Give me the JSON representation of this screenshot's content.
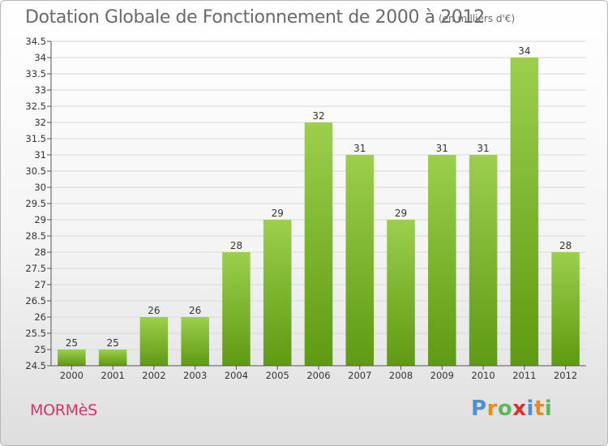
{
  "title": "Dotation Globale de Fonctionnement de 2000 à 2012",
  "subtitle": "(en milliers d'€)",
  "commune": "MORMèS",
  "logo": {
    "letters": [
      "P",
      "r",
      "o",
      "x",
      "i",
      "t",
      "i"
    ],
    "colors": [
      "#4a90d9",
      "#e88a1a",
      "#5cb85c",
      "#d9302c",
      "#4a90d9",
      "#e88a1a",
      "#5cb85c"
    ]
  },
  "colors": {
    "bar_top": "#9ccf4c",
    "bar_bottom": "#5e9a12",
    "axis": "#555555",
    "grid": "#d8d8d8"
  },
  "chart_data": {
    "type": "bar",
    "title": "Dotation Globale de Fonctionnement de 2000 à 2012",
    "categories": [
      "2000",
      "2001",
      "2002",
      "2003",
      "2004",
      "2005",
      "2006",
      "2007",
      "2008",
      "2009",
      "2010",
      "2011",
      "2012"
    ],
    "values": [
      25,
      25,
      26,
      26,
      28,
      29,
      32,
      31,
      29,
      31,
      31,
      34,
      28
    ],
    "ylim": [
      24.5,
      34.5
    ],
    "yticks": [
      24.5,
      25,
      25.5,
      26,
      26.5,
      27,
      27.5,
      28,
      28.5,
      29,
      29.5,
      30,
      30.5,
      31,
      31.5,
      32,
      32.5,
      33,
      33.5,
      34,
      34.5
    ],
    "xlabel": "",
    "ylabel": "",
    "grid": true
  }
}
